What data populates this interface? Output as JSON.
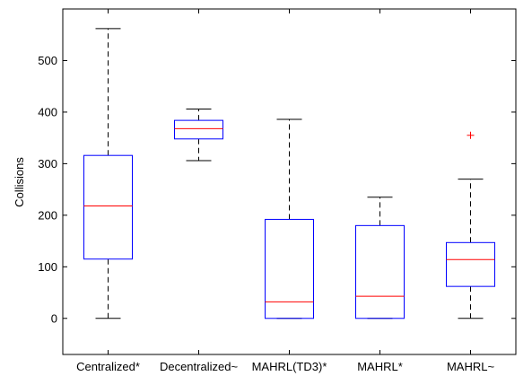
{
  "chart_data": {
    "type": "boxplot",
    "title": "",
    "xlabel": "",
    "ylabel": "Collisions",
    "ylim": [
      -70,
      600
    ],
    "yticks": [
      0,
      100,
      200,
      300,
      400,
      500
    ],
    "grid": false,
    "categories": [
      "Centralized*",
      "Decentralized~",
      "MAHRL(TD3)*",
      "MAHRL*",
      "MAHRL~"
    ],
    "boxes": [
      {
        "name": "Centralized*",
        "whisker_low": 0,
        "q1": 115,
        "median": 218,
        "q3": 316,
        "whisker_high": 562,
        "outliers": []
      },
      {
        "name": "Decentralized~",
        "whisker_low": 306,
        "q1": 348,
        "median": 368,
        "q3": 384,
        "whisker_high": 406,
        "outliers": []
      },
      {
        "name": "MAHRL(TD3)*",
        "whisker_low": 0,
        "q1": 0,
        "median": 32,
        "q3": 192,
        "whisker_high": 386,
        "outliers": []
      },
      {
        "name": "MAHRL*",
        "whisker_low": 0,
        "q1": 0,
        "median": 43,
        "q3": 180,
        "whisker_high": 235,
        "outliers": []
      },
      {
        "name": "MAHRL~",
        "whisker_low": 0,
        "q1": 62,
        "median": 114,
        "q3": 147,
        "whisker_high": 270,
        "outliers": [
          355
        ]
      }
    ],
    "colors": {
      "box": "#0000ff",
      "median": "#ff0000",
      "whisker": "#000000",
      "outlier": "#ff0000",
      "axes": "#000000"
    }
  }
}
